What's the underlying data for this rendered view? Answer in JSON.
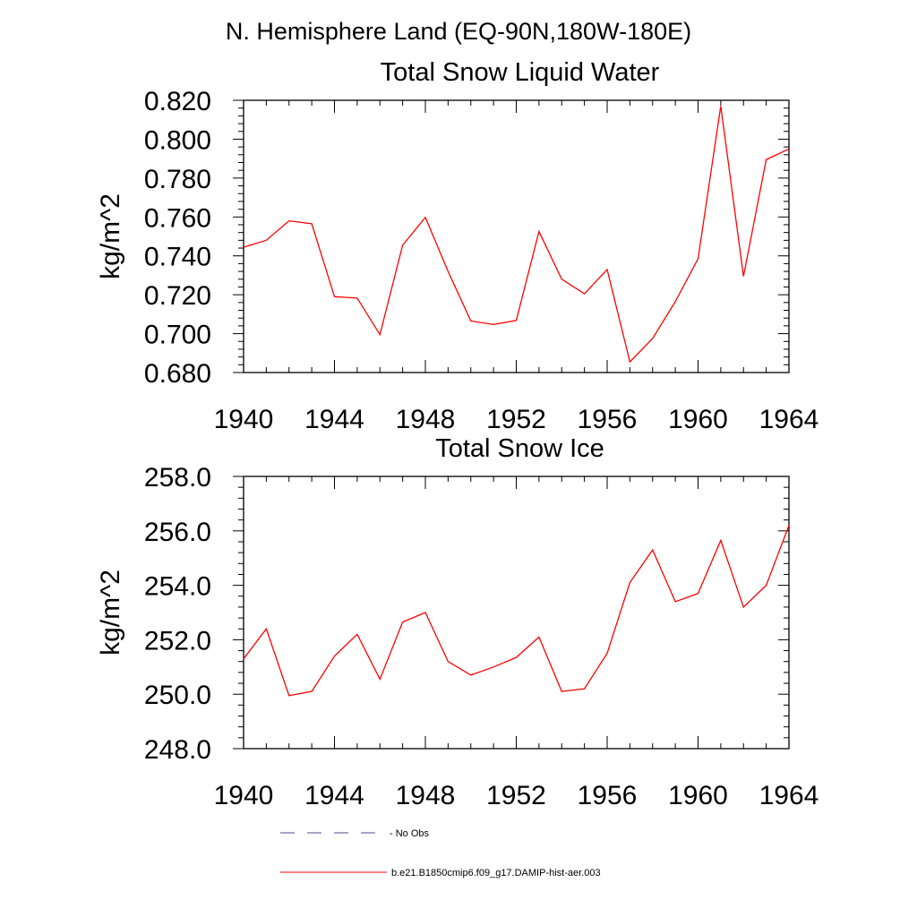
{
  "page_title": "N. Hemisphere Land (EQ-90N,180W-180E)",
  "colors": {
    "series": "#ff0000",
    "axis": "#000000",
    "no_obs": "#4b4b96"
  },
  "legend": {
    "items": [
      {
        "label": "No Obs",
        "style": "dashed"
      },
      {
        "label": "b.e21.B1850cmip6.f09_g17.DAMIP-hist-aer.003",
        "style": "solid"
      }
    ]
  },
  "chart_data": [
    {
      "type": "line",
      "title": "Total Snow Liquid Water",
      "xlabel": "",
      "ylabel": "kg/m^2",
      "xlim": [
        1940,
        1964
      ],
      "ylim": [
        0.68,
        0.82
      ],
      "x_ticks": [
        1940,
        1944,
        1948,
        1952,
        1956,
        1960,
        1964
      ],
      "y_ticks": [
        "0.680",
        "0.700",
        "0.720",
        "0.740",
        "0.760",
        "0.780",
        "0.800",
        "0.820"
      ],
      "y_tick_values": [
        0.68,
        0.7,
        0.72,
        0.74,
        0.76,
        0.78,
        0.8,
        0.82
      ],
      "grid": false,
      "x": [
        1940,
        1941,
        1942,
        1943,
        1944,
        1945,
        1946,
        1947,
        1948,
        1949,
        1950,
        1951,
        1952,
        1953,
        1954,
        1955,
        1956,
        1957,
        1958,
        1959,
        1960,
        1961,
        1962,
        1963,
        1964
      ],
      "series": [
        {
          "name": "b.e21.B1850cmip6.f09_g17.DAMIP-hist-aer.003",
          "values": [
            0.7445,
            0.748,
            0.758,
            0.7565,
            0.719,
            0.7183,
            0.6995,
            0.7455,
            0.7598,
            0.732,
            0.7065,
            0.7047,
            0.7068,
            0.7525,
            0.728,
            0.7205,
            0.733,
            0.6855,
            0.6975,
            0.7165,
            0.7385,
            0.817,
            0.7295,
            0.7895,
            0.795
          ]
        }
      ]
    },
    {
      "type": "line",
      "title": "Total Snow Ice",
      "xlabel": "",
      "ylabel": "kg/m^2",
      "xlim": [
        1940,
        1964
      ],
      "ylim": [
        248,
        258
      ],
      "x_ticks": [
        1940,
        1944,
        1948,
        1952,
        1956,
        1960,
        1964
      ],
      "y_ticks": [
        "248.0",
        "250.0",
        "252.0",
        "254.0",
        "256.0",
        "258.0"
      ],
      "y_tick_values": [
        248,
        250,
        252,
        254,
        256,
        258
      ],
      "grid": false,
      "x": [
        1940,
        1941,
        1942,
        1943,
        1944,
        1945,
        1946,
        1947,
        1948,
        1949,
        1950,
        1951,
        1952,
        1953,
        1954,
        1955,
        1956,
        1957,
        1958,
        1959,
        1960,
        1961,
        1962,
        1963,
        1964
      ],
      "series": [
        {
          "name": "b.e21.B1850cmip6.f09_g17.DAMIP-hist-aer.003",
          "values": [
            251.3,
            252.4,
            249.95,
            250.1,
            251.4,
            252.2,
            250.55,
            252.65,
            253.0,
            251.2,
            250.7,
            251.0,
            251.35,
            252.1,
            250.1,
            250.2,
            251.5,
            254.1,
            255.3,
            253.4,
            253.7,
            255.65,
            253.2,
            254.0,
            256.2
          ]
        }
      ]
    }
  ]
}
